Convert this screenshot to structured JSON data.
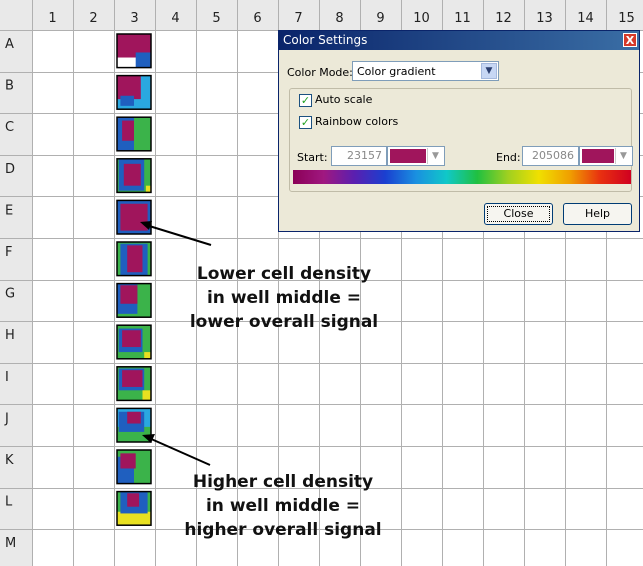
{
  "sheet": {
    "columns": [
      "1",
      "2",
      "3",
      "4",
      "5",
      "6",
      "7",
      "8",
      "9",
      "10",
      "11",
      "12",
      "13",
      "14",
      "15"
    ],
    "rows": [
      "A",
      "B",
      "C",
      "D",
      "E",
      "F",
      "G",
      "H",
      "I",
      "J",
      "K",
      "L",
      "M"
    ]
  },
  "wells": [
    {
      "row": "A",
      "pattern": "top-mag"
    },
    {
      "row": "B",
      "pattern": "left-mag"
    },
    {
      "row": "C",
      "pattern": "green-left"
    },
    {
      "row": "D",
      "pattern": "center-mag"
    },
    {
      "row": "E",
      "pattern": "full-mag"
    },
    {
      "row": "F",
      "pattern": "center-col"
    },
    {
      "row": "G",
      "pattern": "diag-green"
    },
    {
      "row": "H",
      "pattern": "blob-green"
    },
    {
      "row": "I",
      "pattern": "blob-yellow"
    },
    {
      "row": "J",
      "pattern": "blob-light"
    },
    {
      "row": "K",
      "pattern": "green-diag2"
    },
    {
      "row": "L",
      "pattern": "small-mag"
    }
  ],
  "colors": {
    "magenta": "#a0155c",
    "blue": "#1f5fbf",
    "cyan": "#2aa8e0",
    "green": "#3bb34a",
    "yellow": "#e8e020",
    "swatch": "#a0155c"
  },
  "dialog": {
    "title": "Color Settings",
    "close_x": "X",
    "color_mode_label": "Color Mode:",
    "color_mode_value": "Color gradient",
    "auto_scale_label": "Auto scale",
    "auto_scale_checked": true,
    "rainbow_label": "Rainbow colors",
    "rainbow_checked": true,
    "start_label": "Start:",
    "start_value": "23157",
    "end_label": "End:",
    "end_value": "205086",
    "close_button": "Close",
    "help_button": "Help"
  },
  "annotations": {
    "lower": "Lower cell density\nin well middle =\nlower overall signal",
    "higher": "Higher cell density\nin well middle =\nhigher overall signal"
  }
}
